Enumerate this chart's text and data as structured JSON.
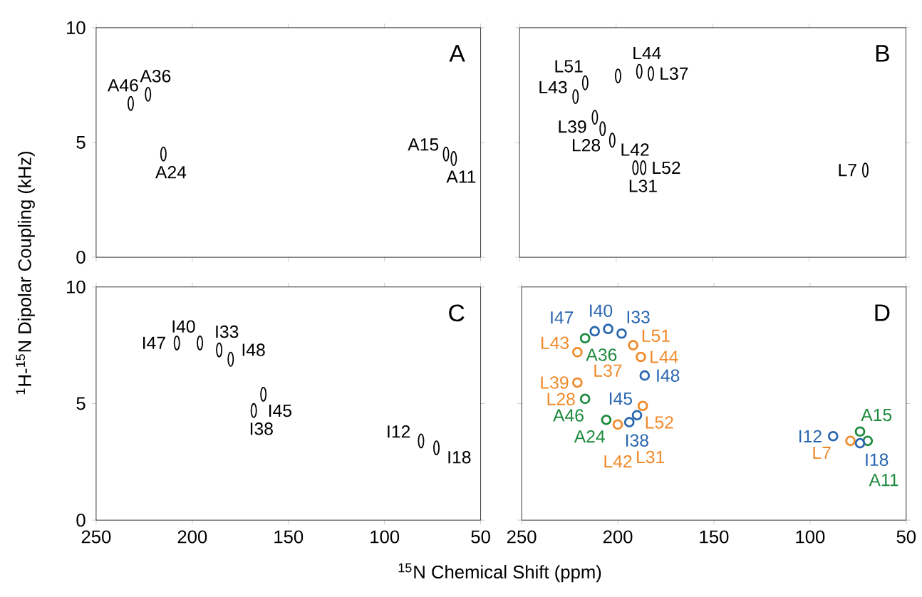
{
  "chart_data": [
    {
      "type": "scatter",
      "title": "A",
      "ylabel": "$^{1}$H-$^{15}$N Dipolar Coupling (kHz)",
      "xlim": [
        250,
        50
      ],
      "ylim": [
        0,
        10
      ],
      "xticks": [
        250,
        200,
        150,
        100,
        50
      ],
      "yticks": [
        0,
        5,
        10
      ],
      "tick_labels": "y",
      "series": [
        {
          "color": "#000000",
          "x": [
            232,
            223,
            215,
            68,
            64
          ],
          "values": [
            6.7,
            7.1,
            4.5,
            4.5,
            4.3
          ]
        }
      ],
      "annotations": [
        {
          "text": "A46",
          "x": 232,
          "y": 6.7
        },
        {
          "text": "A36",
          "x": 223,
          "y": 7.1
        },
        {
          "text": "A24",
          "x": 215,
          "y": 4.5
        },
        {
          "text": "A11",
          "x": 64,
          "y": 4.3
        },
        {
          "text": "A15",
          "x": 68,
          "y": 4.5
        }
      ]
    },
    {
      "type": "scatter",
      "title": "B",
      "xlim": [
        250,
        50
      ],
      "ylim": [
        0,
        10
      ],
      "xticks": [
        250,
        200,
        150,
        100,
        50
      ],
      "yticks": [
        0,
        5,
        10
      ],
      "tick_labels": false,
      "series": [
        {
          "color": "#000000",
          "x": [
            216,
            221,
            211,
            207,
            202,
            199,
            188,
            182,
            190,
            186,
            71
          ],
          "values": [
            7.6,
            7.0,
            6.1,
            5.6,
            5.1,
            7.9,
            8.1,
            8.0,
            3.9,
            3.9,
            3.8
          ]
        }
      ],
      "annotations": [
        {
          "text": "L43",
          "x": 221,
          "y": 7.0
        },
        {
          "text": "L51",
          "x": 216,
          "y": 7.6
        },
        {
          "text": "L44",
          "x": 188,
          "y": 8.1
        },
        {
          "text": "L37",
          "x": 182,
          "y": 8.0
        },
        {
          "text": "L39",
          "x": 211,
          "y": 6.1
        },
        {
          "text": "L28",
          "x": 207,
          "y": 5.6
        },
        {
          "text": "L42",
          "x": 202,
          "y": 5.1
        },
        {
          "text": "L31",
          "x": 190,
          "y": 3.9
        },
        {
          "text": "L52",
          "x": 186,
          "y": 3.9
        },
        {
          "text": "L7",
          "x": 71,
          "y": 3.8
        }
      ]
    },
    {
      "type": "scatter",
      "title": "C",
      "xlabel": "$^{15}$N Chemical Shift (ppm)",
      "xlim": [
        250,
        50
      ],
      "ylim": [
        0,
        10
      ],
      "xticks": [
        250,
        200,
        150,
        100,
        50
      ],
      "yticks": [
        0,
        5,
        10
      ],
      "series": [
        {
          "color": "#000000",
          "x": [
            208,
            196,
            186,
            180,
            163,
            168,
            81,
            73
          ],
          "values": [
            7.6,
            7.6,
            7.3,
            6.9,
            5.4,
            4.7,
            3.4,
            3.1
          ]
        }
      ],
      "annotations": [
        {
          "text": "I47",
          "x": 208,
          "y": 7.6
        },
        {
          "text": "I40",
          "x": 196,
          "y": 7.6
        },
        {
          "text": "I33",
          "x": 186,
          "y": 7.3
        },
        {
          "text": "I48",
          "x": 180,
          "y": 6.9
        },
        {
          "text": "I45",
          "x": 163,
          "y": 5.4
        },
        {
          "text": "I38",
          "x": 168,
          "y": 4.7
        },
        {
          "text": "I12",
          "x": 81,
          "y": 3.4
        },
        {
          "text": "I18",
          "x": 73,
          "y": 3.1
        }
      ]
    },
    {
      "type": "scatter",
      "title": "D",
      "xlim": [
        250,
        50
      ],
      "ylim": [
        0,
        10
      ],
      "xticks": [
        250,
        200,
        150,
        100,
        50
      ],
      "yticks": [
        0,
        5,
        10
      ],
      "tick_labels": "x",
      "marker": "circle",
      "series": [
        {
          "color": "#1e8a3e",
          "x": [
            217,
            206,
            217,
            74,
            70
          ],
          "values": [
            7.8,
            4.3,
            5.2,
            3.8,
            3.4
          ]
        },
        {
          "color": "#f08a2b",
          "x": [
            221,
            221,
            192,
            188,
            187,
            200,
            79
          ],
          "values": [
            7.2,
            5.9,
            7.5,
            7.0,
            4.9,
            4.1,
            3.4
          ]
        },
        {
          "color": "#2a66b0",
          "x": [
            212,
            205,
            198,
            186,
            190,
            194,
            88,
            74
          ],
          "values": [
            8.1,
            8.2,
            8.0,
            6.2,
            4.5,
            4.2,
            3.6,
            3.3
          ]
        }
      ],
      "annotations": [
        {
          "text": "I40",
          "x": 205,
          "y": 8.2
        },
        {
          "text": "I33",
          "x": 198,
          "y": 8.0
        },
        {
          "text": "I47",
          "x": 212,
          "y": 8.1
        },
        {
          "text": "A36",
          "x": 217,
          "y": 7.8
        },
        {
          "text": "L51",
          "x": 192,
          "y": 7.5
        },
        {
          "text": "L43",
          "x": 221,
          "y": 7.2
        },
        {
          "text": "L44",
          "x": 188,
          "y": 7.0
        },
        {
          "text": "L37",
          "x": 188,
          "y": 7.0
        },
        {
          "text": "L39",
          "x": 221,
          "y": 5.9
        },
        {
          "text": "I48",
          "x": 186,
          "y": 6.2
        },
        {
          "text": "L28",
          "x": 221,
          "y": 5.9
        },
        {
          "text": "L52",
          "x": 187,
          "y": 4.9
        },
        {
          "text": "A46",
          "x": 217,
          "y": 5.2
        },
        {
          "text": "I45",
          "x": 190,
          "y": 4.5
        },
        {
          "text": "A24",
          "x": 206,
          "y": 4.3
        },
        {
          "text": "I38",
          "x": 194,
          "y": 4.2
        },
        {
          "text": "L42",
          "x": 200,
          "y": 4.1
        },
        {
          "text": "L31",
          "x": 200,
          "y": 4.1
        },
        {
          "text": "I12",
          "x": 88,
          "y": 3.6
        },
        {
          "text": "L7",
          "x": 79,
          "y": 3.4
        },
        {
          "text": "A15",
          "x": 74,
          "y": 3.8
        },
        {
          "text": "I18",
          "x": 74,
          "y": 3.3
        },
        {
          "text": "A11",
          "x": 70,
          "y": 3.4
        }
      ]
    }
  ]
}
